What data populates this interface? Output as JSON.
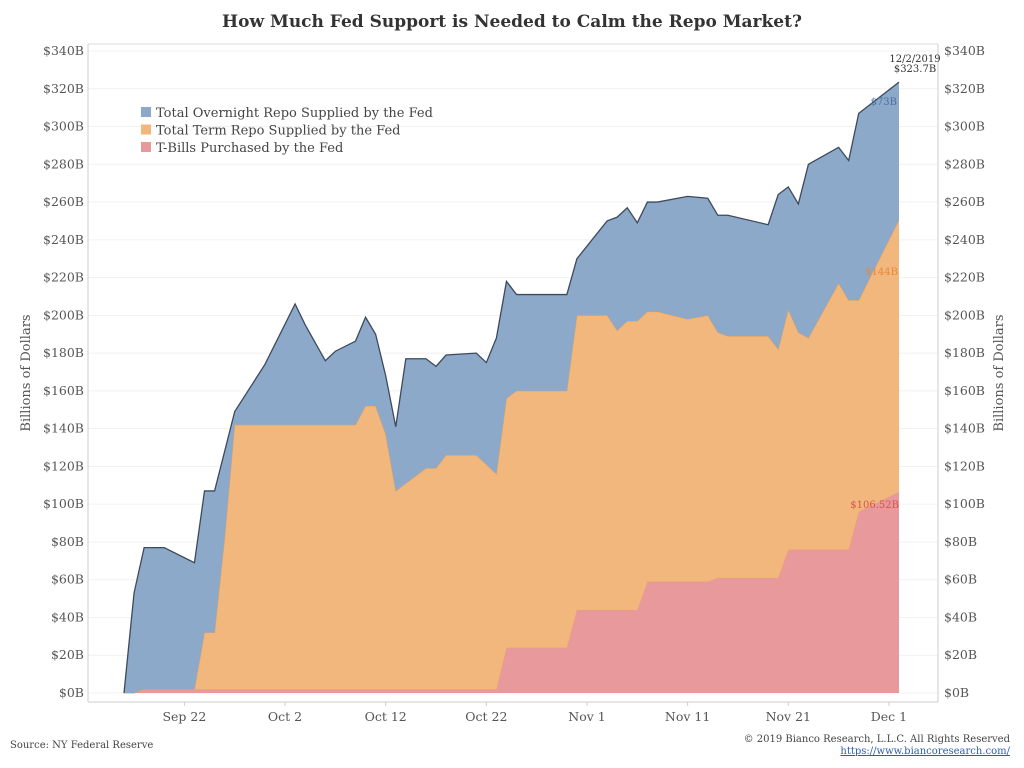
{
  "chart_data": {
    "type": "area",
    "stacked": true,
    "title": "How Much Fed Support is Needed to Calm the Repo Market?",
    "ylabel_left": "Billions of Dollars",
    "ylabel_right": "Billions of Dollars",
    "ylim": [
      0,
      340
    ],
    "yticks": [
      "$0B",
      "$20B",
      "$40B",
      "$60B",
      "$80B",
      "$100B",
      "$120B",
      "$140B",
      "$160B",
      "$180B",
      "$200B",
      "$220B",
      "$240B",
      "$260B",
      "$280B",
      "$300B",
      "$320B",
      "$340B"
    ],
    "xlim": [
      "2019-09-16",
      "2019-12-02"
    ],
    "xticks": [
      {
        "date": "2019-09-22",
        "label": "Sep 22"
      },
      {
        "date": "2019-10-02",
        "label": "Oct 2"
      },
      {
        "date": "2019-10-12",
        "label": "Oct 12"
      },
      {
        "date": "2019-10-22",
        "label": "Oct 22"
      },
      {
        "date": "2019-11-01",
        "label": "Nov 1"
      },
      {
        "date": "2019-11-11",
        "label": "Nov 11"
      },
      {
        "date": "2019-11-21",
        "label": "Nov 21"
      },
      {
        "date": "2019-12-01",
        "label": "Dec 1"
      }
    ],
    "legend_position": "top-left",
    "series": [
      {
        "name": "T-Bills Purchased by the Fed",
        "color": "#e8999b",
        "edge": "#e9a07a",
        "points": [
          [
            "2019-09-16",
            0
          ],
          [
            "2019-09-17",
            0
          ],
          [
            "2019-09-18",
            2
          ],
          [
            "2019-10-16",
            2
          ],
          [
            "2019-10-23",
            2
          ],
          [
            "2019-10-24",
            24
          ],
          [
            "2019-10-30",
            24
          ],
          [
            "2019-10-31",
            44
          ],
          [
            "2019-11-06",
            44
          ],
          [
            "2019-11-07",
            59
          ],
          [
            "2019-11-13",
            59
          ],
          [
            "2019-11-14",
            61
          ],
          [
            "2019-11-20",
            61
          ],
          [
            "2019-11-21",
            76
          ],
          [
            "2019-11-27",
            76
          ],
          [
            "2019-11-28",
            96
          ],
          [
            "2019-12-02",
            106.52
          ]
        ]
      },
      {
        "name": "Total Term Repo Supplied by the Fed",
        "color": "#f2b77c",
        "edge": "#eea25a",
        "points": [
          [
            "2019-09-16",
            0
          ],
          [
            "2019-09-17",
            0
          ],
          [
            "2019-09-18",
            0
          ],
          [
            "2019-09-23",
            0
          ],
          [
            "2019-09-24",
            30
          ],
          [
            "2019-09-25",
            30
          ],
          [
            "2019-09-26",
            80
          ],
          [
            "2019-09-27",
            140
          ],
          [
            "2019-10-09",
            140
          ],
          [
            "2019-10-10",
            150
          ],
          [
            "2019-10-11",
            150
          ],
          [
            "2019-10-12",
            135
          ],
          [
            "2019-10-13",
            105
          ],
          [
            "2019-10-16",
            117
          ],
          [
            "2019-10-17",
            117
          ],
          [
            "2019-10-18",
            124
          ],
          [
            "2019-10-21",
            124
          ],
          [
            "2019-10-23",
            114
          ],
          [
            "2019-10-24",
            132
          ],
          [
            "2019-10-25",
            136
          ],
          [
            "2019-10-30",
            136
          ],
          [
            "2019-10-31",
            156
          ],
          [
            "2019-11-03",
            156
          ],
          [
            "2019-11-04",
            148
          ],
          [
            "2019-11-05",
            153
          ],
          [
            "2019-11-06",
            153
          ],
          [
            "2019-11-07",
            143
          ],
          [
            "2019-11-08",
            143
          ],
          [
            "2019-11-11",
            139
          ],
          [
            "2019-11-13",
            141
          ],
          [
            "2019-11-14",
            130
          ],
          [
            "2019-11-15",
            128
          ],
          [
            "2019-11-19",
            128
          ],
          [
            "2019-11-20",
            121
          ],
          [
            "2019-11-21",
            127
          ],
          [
            "2019-11-22",
            115
          ],
          [
            "2019-11-23",
            112
          ],
          [
            "2019-11-26",
            141
          ],
          [
            "2019-11-27",
            132
          ],
          [
            "2019-11-28",
            112
          ],
          [
            "2019-12-02",
            144
          ]
        ]
      },
      {
        "name": "Total Overnight Repo Supplied by the Fed",
        "color": "#8da9c9",
        "edge": "#3d4a5c",
        "points": [
          [
            "2019-09-16",
            0
          ],
          [
            "2019-09-17",
            53
          ],
          [
            "2019-09-18",
            75
          ],
          [
            "2019-09-20",
            75
          ],
          [
            "2019-09-23",
            67
          ],
          [
            "2019-09-24",
            75
          ],
          [
            "2019-09-25",
            75
          ],
          [
            "2019-09-26",
            46
          ],
          [
            "2019-09-27",
            7
          ],
          [
            "2019-09-30",
            32
          ],
          [
            "2019-10-03",
            64
          ],
          [
            "2019-10-04",
            53
          ],
          [
            "2019-10-06",
            34
          ],
          [
            "2019-10-07",
            39
          ],
          [
            "2019-10-10",
            47
          ],
          [
            "2019-10-11",
            38
          ],
          [
            "2019-10-12",
            31
          ],
          [
            "2019-10-13",
            34
          ],
          [
            "2019-10-14",
            66
          ],
          [
            "2019-10-17",
            54
          ],
          [
            "2019-10-18",
            53
          ],
          [
            "2019-10-21",
            54
          ],
          [
            "2019-10-22",
            54
          ],
          [
            "2019-10-23",
            72
          ],
          [
            "2019-10-24",
            62
          ],
          [
            "2019-10-25",
            51
          ],
          [
            "2019-10-30",
            51
          ],
          [
            "2019-10-31",
            30
          ],
          [
            "2019-11-03",
            50
          ],
          [
            "2019-11-04",
            60
          ],
          [
            "2019-11-05",
            60
          ],
          [
            "2019-11-06",
            52
          ],
          [
            "2019-11-07",
            58
          ],
          [
            "2019-11-08",
            58
          ],
          [
            "2019-11-11",
            65
          ],
          [
            "2019-11-13",
            62
          ],
          [
            "2019-11-14",
            62
          ],
          [
            "2019-11-15",
            64
          ],
          [
            "2019-11-19",
            59
          ],
          [
            "2019-11-20",
            82
          ],
          [
            "2019-11-21",
            65
          ],
          [
            "2019-11-22",
            68
          ],
          [
            "2019-11-23",
            92
          ],
          [
            "2019-11-26",
            72
          ],
          [
            "2019-11-27",
            74
          ],
          [
            "2019-11-28",
            99
          ],
          [
            "2019-12-02",
            73
          ]
        ]
      }
    ],
    "annotations": {
      "date_label": "12/2/2019",
      "total_label": "$323.7B",
      "overnight_label": "$73B",
      "term_label": "$144B",
      "tbills_label": "$106.52B"
    }
  },
  "footer": {
    "source": "Source: NY Federal Reserve",
    "copyright": "© 2019 Bianco Research, L.L.C. All Rights Reserved",
    "url": "https://www.biancoresearch.com/"
  }
}
